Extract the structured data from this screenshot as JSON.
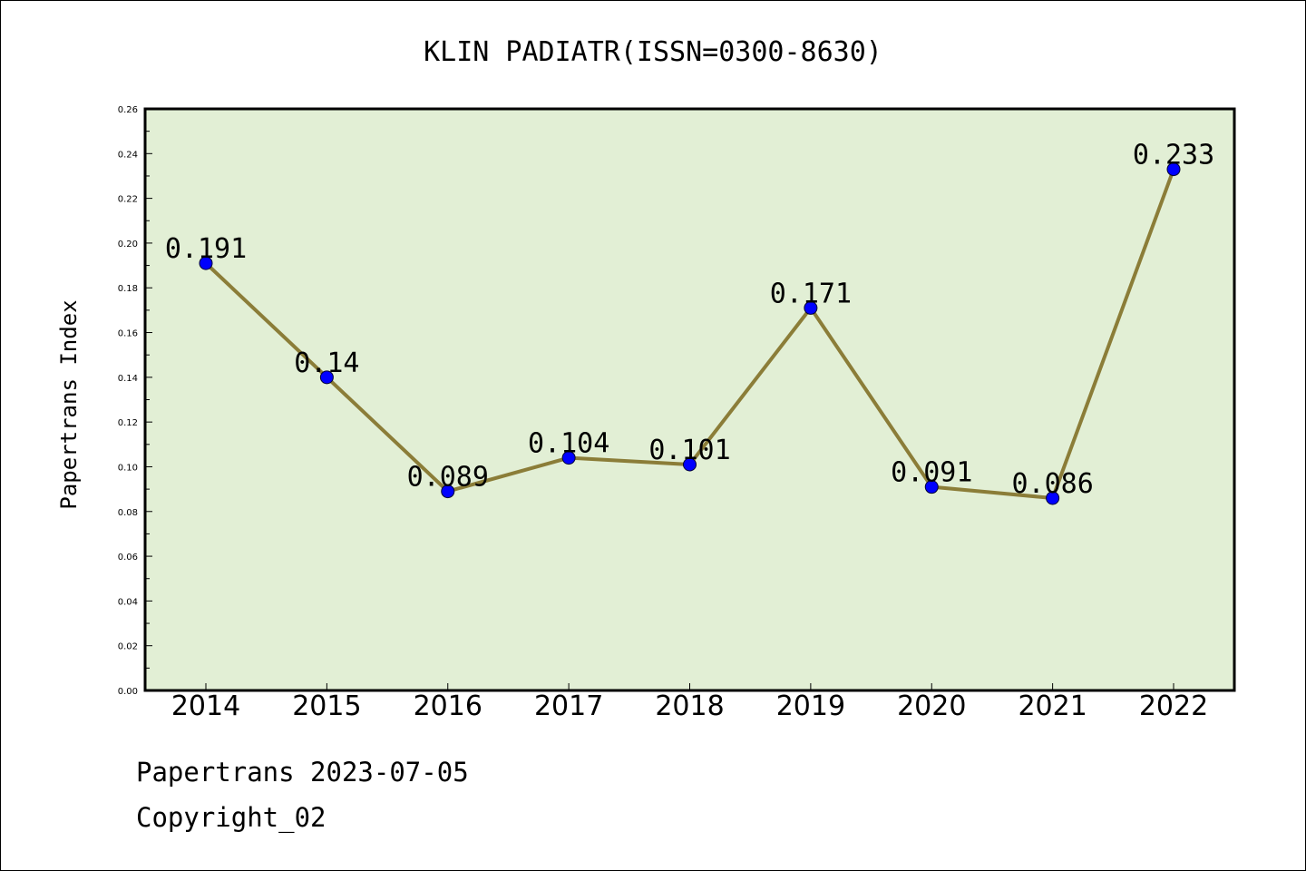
{
  "chart_data": {
    "type": "line",
    "title": "KLIN PADIATR(ISSN=0300-8630)",
    "xlabel": "",
    "ylabel": "Papertrans Index",
    "categories": [
      "2014",
      "2015",
      "2016",
      "2017",
      "2018",
      "2019",
      "2020",
      "2021",
      "2022"
    ],
    "values": [
      0.191,
      0.14,
      0.089,
      0.104,
      0.101,
      0.171,
      0.091,
      0.086,
      0.233
    ],
    "data_labels": [
      "0.191",
      "0.14",
      "0.089",
      "0.104",
      "0.101",
      "0.171",
      "0.091",
      "0.086",
      "0.233"
    ],
    "ylim": [
      0,
      0.26
    ],
    "yticks": [
      "0.00",
      "0.02",
      "0.04",
      "0.06",
      "0.08",
      "0.10",
      "0.12",
      "0.14",
      "0.16",
      "0.18",
      "0.20",
      "0.22",
      "0.24",
      "0.26"
    ],
    "grid": false,
    "legend": "none",
    "colors": {
      "plot_background": "#e2efd5",
      "line": "#8b7d38",
      "marker": "#0000ff"
    }
  },
  "footer": {
    "line1": "Papertrans 2023-07-05",
    "line2": "Copyright_02"
  }
}
